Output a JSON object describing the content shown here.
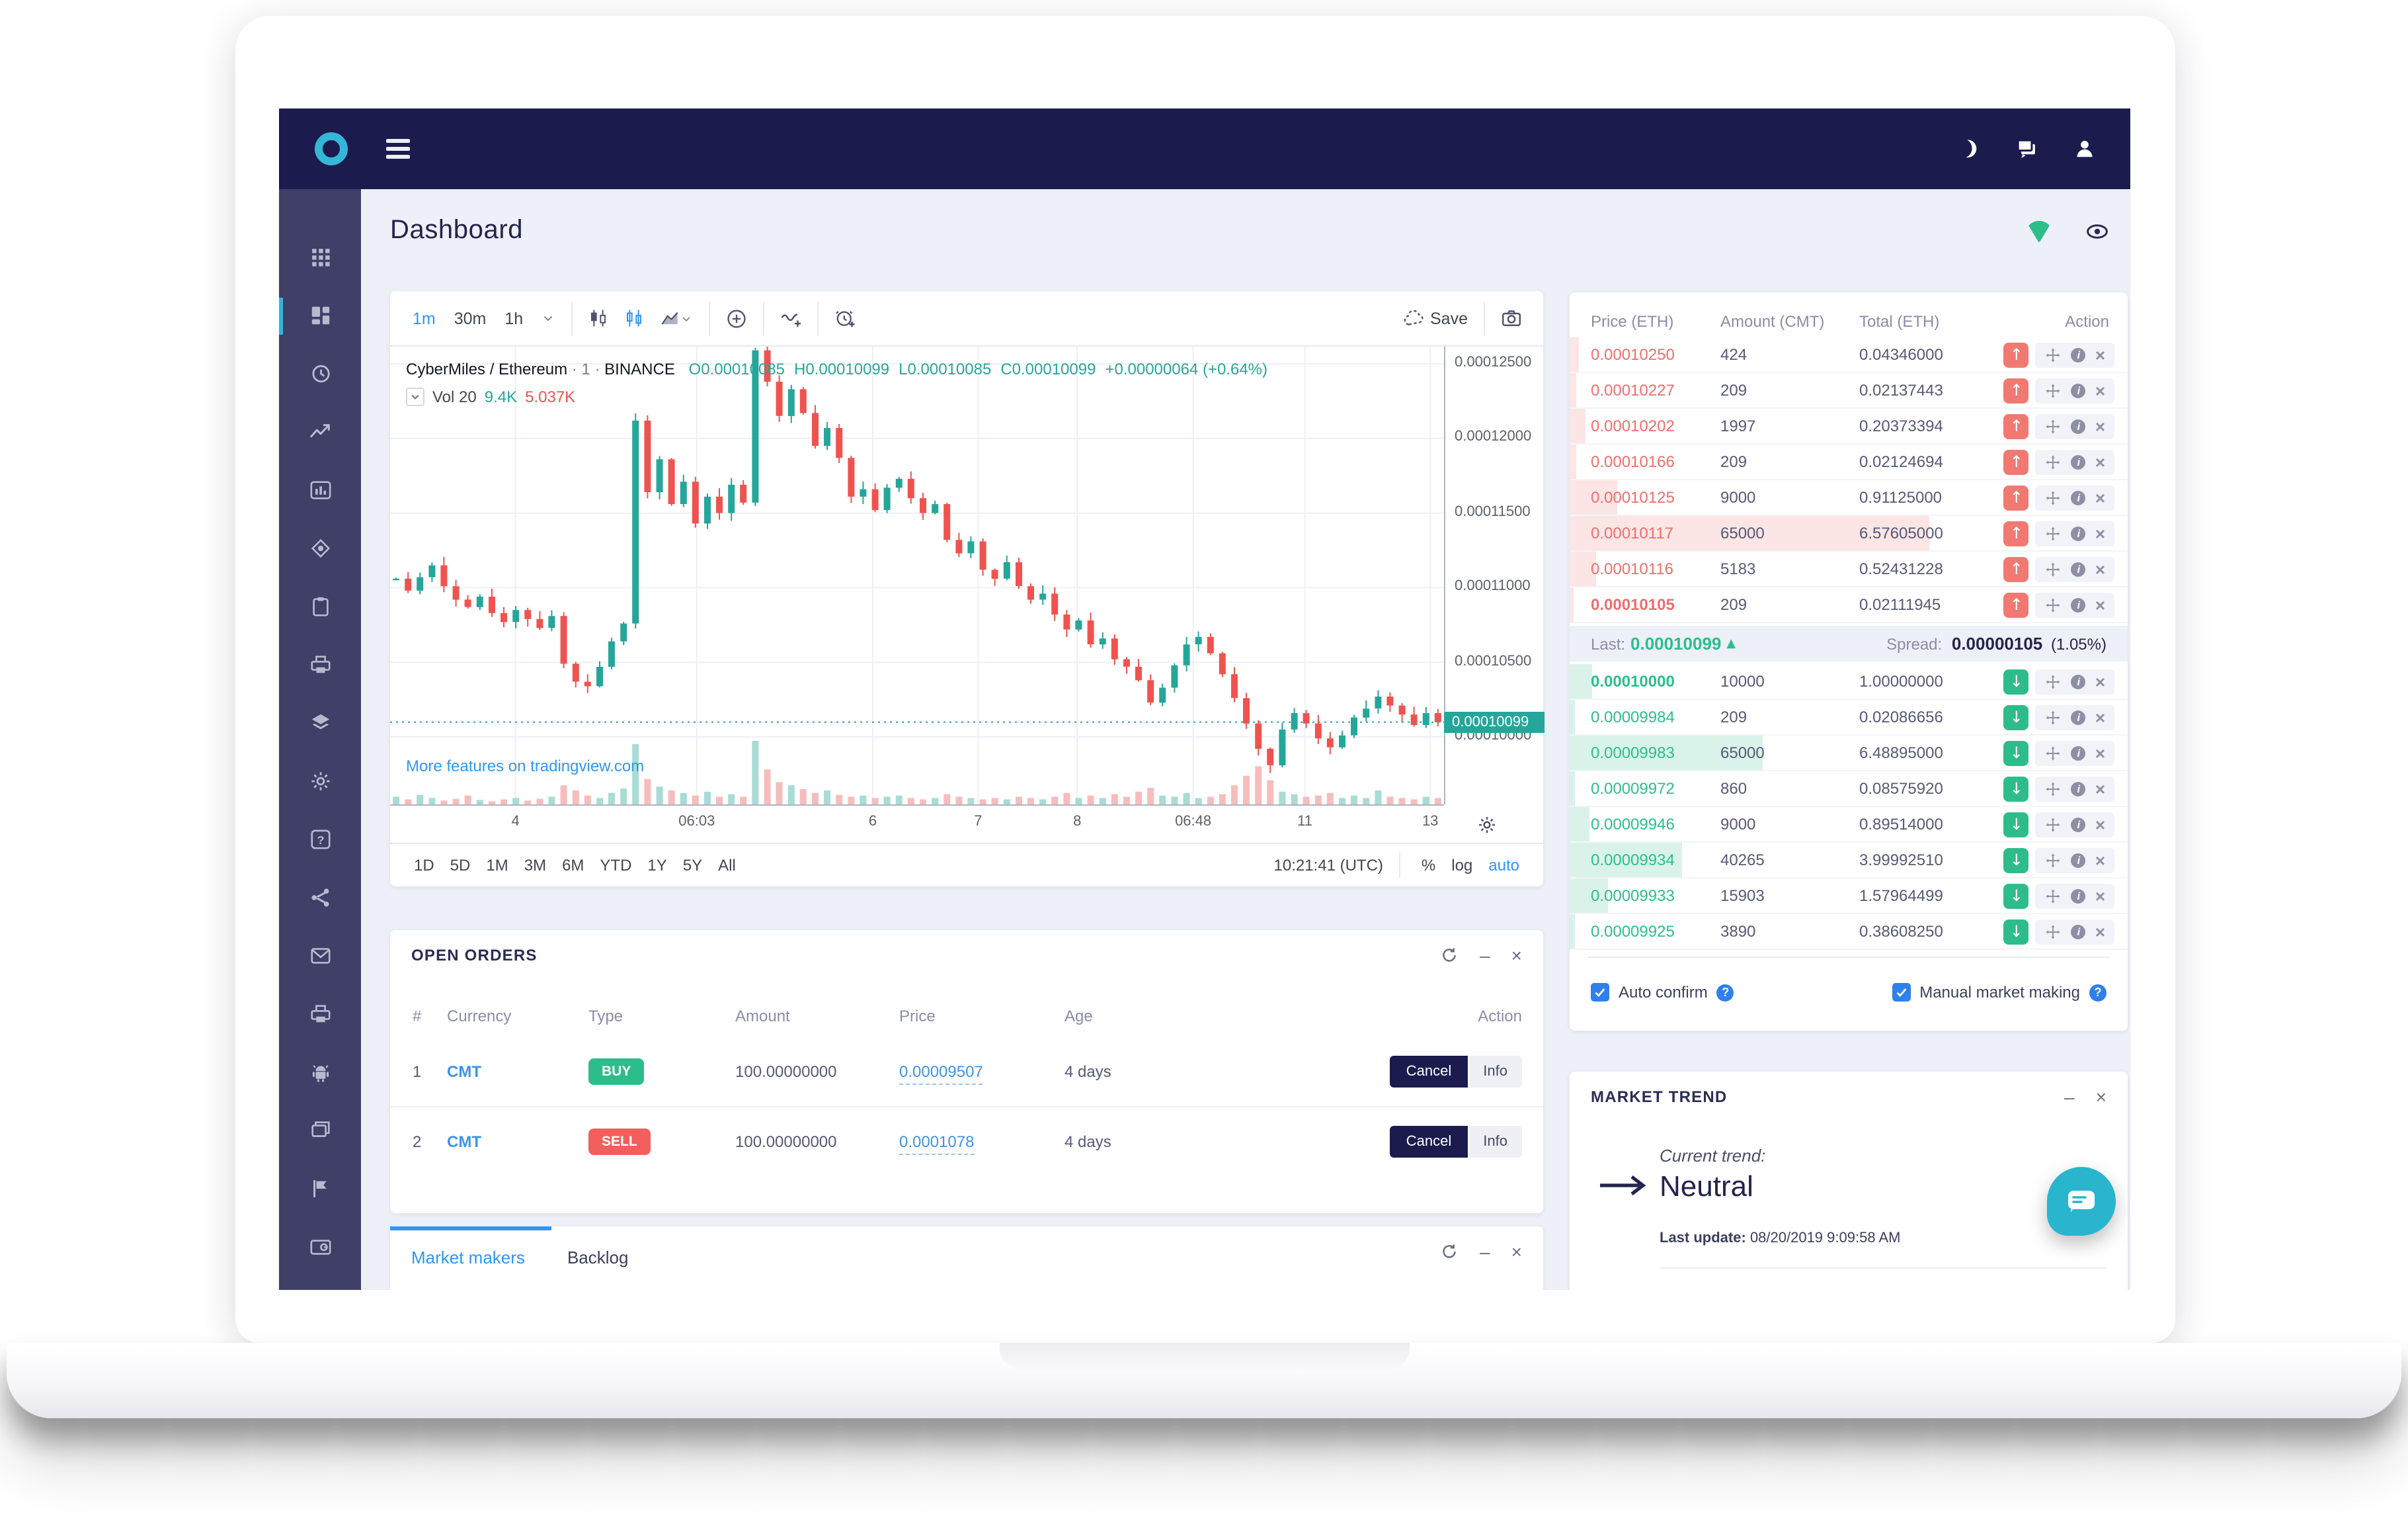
{
  "topbar": {
    "icons": [
      "moon",
      "chat",
      "user"
    ]
  },
  "sidebar": {
    "active_index": 1,
    "icons": [
      "apps-grid",
      "dashboard",
      "history",
      "trending",
      "bar-chart",
      "watch-eye",
      "clipboard",
      "printer",
      "layers",
      "settings",
      "help",
      "share",
      "mail",
      "printer-alt",
      "android",
      "windows",
      "flag",
      "wallet-card"
    ]
  },
  "page": {
    "title": "Dashboard",
    "header_icons": [
      "signal-wedge",
      "eye"
    ]
  },
  "chart": {
    "toolbar": {
      "timeframes": [
        "1m",
        "30m",
        "1h"
      ],
      "active_timeframe": "1m",
      "save_label": "Save"
    },
    "legend": {
      "symbol": "CyberMiles / Ethereum",
      "separator": "· 1 ·",
      "exchange": "BINANCE",
      "ohlc": [
        "O0.00010085",
        "H0.00010099",
        "L0.00010085",
        "C0.00010099",
        "+0.00000064 (+0.64%)"
      ]
    },
    "volume": {
      "label": "Vol 20",
      "ma1": "9.4K",
      "ma2": "5.037K"
    },
    "watermark_link": "More features on tradingview.com",
    "price_axis": [
      "0.00012500",
      "0.00012000",
      "0.00011500",
      "0.00011000",
      "0.00010500",
      "0.00010000"
    ],
    "current_price": "0.00010099",
    "time_axis": [
      "4",
      "06:03",
      "6",
      "7",
      "8",
      "06:48",
      "11",
      "13"
    ],
    "footer": {
      "ranges": [
        "1D",
        "5D",
        "1M",
        "3M",
        "6M",
        "YTD",
        "1Y",
        "5Y",
        "All"
      ],
      "clock": "10:21:41 (UTC)",
      "scales": [
        "%",
        "log"
      ],
      "auto_label": "auto"
    }
  },
  "chart_data": {
    "type": "candlestick+volume",
    "title": "CyberMiles / Ethereum · 1 · BINANCE",
    "ohlc_legend": {
      "open": 0.00010085,
      "high": 0.00010099,
      "low": 0.00010085,
      "close": 0.00010099,
      "change": "+0.00000064 (+0.64%)"
    },
    "ylim": [
      9.551e-05,
      0.00012615
    ],
    "price_ticks": [
      0.000125,
      0.00012,
      0.000115,
      0.00011,
      0.000105,
      0.0001
    ],
    "time_ticks": [
      "4",
      "06:03",
      "6",
      "7",
      "8",
      "06:48",
      "11",
      "13"
    ],
    "current_price": 0.00010099,
    "closes_e8": [
      11060,
      10980,
      11070,
      11150,
      11010,
      10920,
      10870,
      10940,
      10830,
      10770,
      10850,
      10790,
      10730,
      10810,
      10490,
      10370,
      10340,
      10470,
      10640,
      10760,
      12120,
      11640,
      11860,
      11560,
      11710,
      11430,
      11610,
      11500,
      11690,
      11570,
      12590,
      12380,
      12150,
      12330,
      12170,
      11950,
      12070,
      11870,
      11610,
      11660,
      11520,
      11670,
      11730,
      11600,
      11500,
      11560,
      11320,
      11230,
      11310,
      11120,
      11060,
      11170,
      11010,
      10920,
      10960,
      10820,
      10720,
      10780,
      10620,
      10660,
      10520,
      10470,
      10380,
      10230,
      10330,
      10480,
      10620,
      10670,
      10560,
      10420,
      10260,
      10090,
      9920,
      9810,
      10050,
      10160,
      10090,
      9990,
      9930,
      10010,
      10130,
      10190,
      10270,
      10210,
      10150,
      10080,
      10160,
      10099
    ],
    "volumes_rel": [
      12,
      8,
      15,
      10,
      6,
      9,
      14,
      7,
      5,
      8,
      10,
      6,
      9,
      12,
      30,
      22,
      14,
      10,
      18,
      25,
      95,
      40,
      28,
      22,
      18,
      14,
      20,
      12,
      16,
      12,
      100,
      55,
      35,
      30,
      24,
      18,
      22,
      15,
      12,
      14,
      10,
      12,
      14,
      10,
      8,
      10,
      16,
      12,
      10,
      8,
      10,
      8,
      12,
      10,
      8,
      12,
      18,
      10,
      14,
      10,
      16,
      12,
      20,
      26,
      14,
      12,
      18,
      10,
      12,
      16,
      30,
      45,
      60,
      38,
      20,
      16,
      12,
      14,
      18,
      10,
      14,
      10,
      22,
      12,
      10,
      8,
      12,
      10
    ]
  },
  "order_book": {
    "columns": [
      "Price (ETH)",
      "Amount (CMT)",
      "Total (ETH)",
      "Action"
    ],
    "asks": [
      {
        "price": "0.00010250",
        "amount": "424",
        "total": "0.04346000",
        "depth": 0.02,
        "bold": false
      },
      {
        "price": "0.00010227",
        "amount": "209",
        "total": "0.02137443",
        "depth": 0.015,
        "bold": false
      },
      {
        "price": "0.00010202",
        "amount": "1997",
        "total": "0.20373394",
        "depth": 0.035,
        "bold": false
      },
      {
        "price": "0.00010166",
        "amount": "209",
        "total": "0.02124694",
        "depth": 0.015,
        "bold": false
      },
      {
        "price": "0.00010125",
        "amount": "9000",
        "total": "0.91125000",
        "depth": 0.105,
        "bold": false
      },
      {
        "price": "0.00010117",
        "amount": "65000",
        "total": "6.57605000",
        "depth": 0.8,
        "bold": false
      },
      {
        "price": "0.00010116",
        "amount": "5183",
        "total": "0.52431228",
        "depth": 0.06,
        "bold": false
      },
      {
        "price": "0.00010105",
        "amount": "209",
        "total": "0.02111945",
        "depth": 0.01,
        "bold": true
      }
    ],
    "last_label": "Last:",
    "last_price": "0.00010099",
    "spread_label": "Spread:",
    "spread_value": "0.00000105",
    "spread_pct": "(1.05%)",
    "bids": [
      {
        "price": "0.00010000",
        "amount": "10000",
        "total": "1.00000000",
        "depth": 0.05,
        "bold": true
      },
      {
        "price": "0.00009984",
        "amount": "209",
        "total": "0.02086656",
        "depth": 0.012,
        "bold": false
      },
      {
        "price": "0.00009983",
        "amount": "65000",
        "total": "6.48895000",
        "depth": 0.43,
        "bold": false
      },
      {
        "price": "0.00009972",
        "amount": "860",
        "total": "0.08575920",
        "depth": 0.012,
        "bold": false
      },
      {
        "price": "0.00009946",
        "amount": "9000",
        "total": "0.89514000",
        "depth": 0.045,
        "bold": false
      },
      {
        "price": "0.00009934",
        "amount": "40265",
        "total": "3.99992510",
        "depth": 0.25,
        "bold": false
      },
      {
        "price": "0.00009933",
        "amount": "15903",
        "total": "1.57964499",
        "depth": 0.085,
        "bold": false
      },
      {
        "price": "0.00009925",
        "amount": "3890",
        "total": "0.38608250",
        "depth": 0.012,
        "bold": false
      }
    ],
    "auto_confirm_label": "Auto confirm",
    "manual_label": "Manual market making"
  },
  "open_orders": {
    "title": "OPEN ORDERS",
    "columns": [
      "#",
      "Currency",
      "Type",
      "Amount",
      "Price",
      "Age",
      "Action"
    ],
    "cancel_label": "Cancel",
    "info_label": "Info",
    "rows": [
      {
        "num": "1",
        "currency": "CMT",
        "type": "BUY",
        "amount": "100.00000000",
        "price": "0.00009507",
        "age": "4 days"
      },
      {
        "num": "2",
        "currency": "CMT",
        "type": "SELL",
        "amount": "100.00000000",
        "price": "0.0001078",
        "age": "4 days"
      }
    ]
  },
  "tabs_panel": {
    "tabs": [
      "Market makers",
      "Backlog"
    ],
    "active": "Market makers"
  },
  "market_trend": {
    "title": "MARKET TREND",
    "current_label": "Current trend:",
    "value": "Neutral",
    "update_label": "Last update:",
    "update_value": "08/20/2019 9:09:58 AM"
  },
  "colors": {
    "accent_teal": "#35b5d8",
    "green": "#2dbd8b",
    "red": "#f0706e",
    "blue": "#2f96f3",
    "navy": "#1b1b4d",
    "chart_up": "#26a69a",
    "chart_down": "#ef5350"
  }
}
